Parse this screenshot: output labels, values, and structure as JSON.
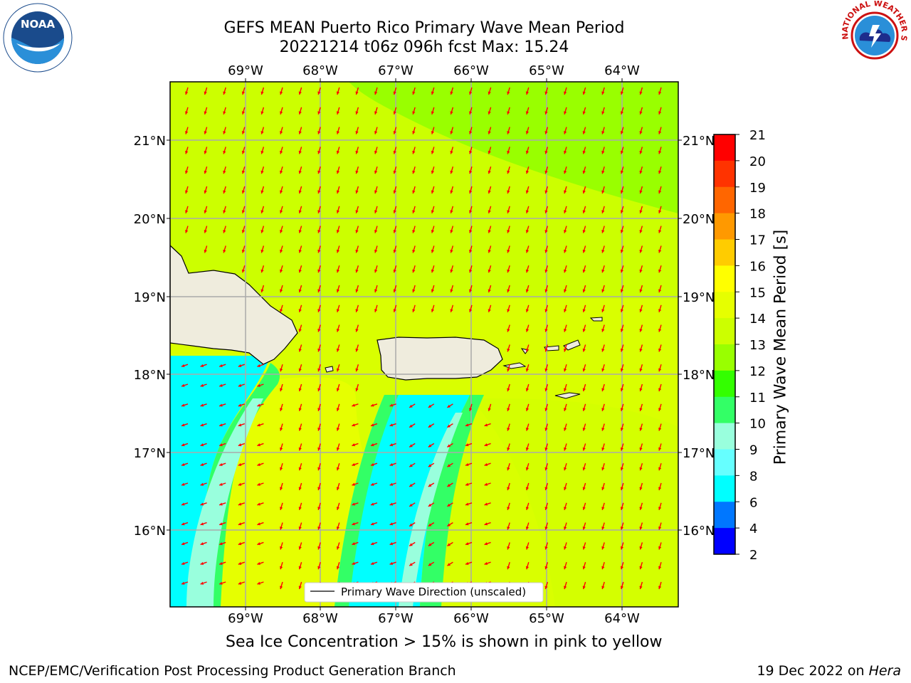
{
  "title": {
    "line1": "GEFS MEAN Puerto Rico Primary Wave Mean Period",
    "line2": "20221214 t06z 096h fcst   Max: 15.24"
  },
  "map": {
    "lon_labels": [
      "69°W",
      "68°W",
      "67°W",
      "66°W",
      "65°W",
      "64°W"
    ],
    "lat_labels": [
      "21°N",
      "20°N",
      "19°N",
      "18°N",
      "17°N",
      "16°N"
    ],
    "legend_label": "Primary Wave Direction (unscaled)",
    "arrow_color": "#ff0000",
    "land_color": "#efecdd"
  },
  "colorbar": {
    "label": "Primary Wave Mean Period [s]",
    "ticks": [
      "21",
      "20",
      "19",
      "18",
      "17",
      "16",
      "15",
      "14",
      "13",
      "12",
      "11",
      "10",
      "9",
      "8",
      "6",
      "4",
      "2"
    ],
    "colors": [
      "#ff0000",
      "#ff3300",
      "#ff6600",
      "#ff9900",
      "#ffcc00",
      "#ffff00",
      "#e6ff00",
      "#ccff00",
      "#99ff00",
      "#33ff00",
      "#33ff66",
      "#99ffdd",
      "#66ffff",
      "#00ffff",
      "#0077ff",
      "#0000ff"
    ]
  },
  "subtitle": "Sea Ice Concentration > 15% is shown in pink to yellow",
  "footer": {
    "left": "NCEP/EMC/Verification Post Processing Product Generation Branch",
    "right_prefix": "19 Dec 2022 on ",
    "right_machine": "Hera"
  },
  "logos": {
    "noaa": "NOAA",
    "nws": "NATIONAL WEATHER SERVICE"
  }
}
